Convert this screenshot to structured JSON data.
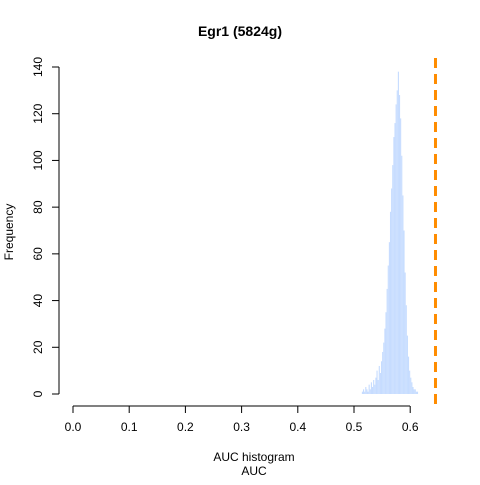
{
  "chart_data": {
    "type": "bar",
    "title": "Egr1 (5824g)",
    "xlabel_line1": "AUC histogram",
    "xlabel_line2": "AUC",
    "ylabel": "Frequency",
    "xlim": [
      0.0,
      0.65
    ],
    "ylim": [
      0,
      140
    ],
    "x_ticks": [
      0.0,
      0.1,
      0.2,
      0.3,
      0.4,
      0.5,
      0.6
    ],
    "x_tick_labels": [
      "0.0",
      "0.1",
      "0.2",
      "0.3",
      "0.4",
      "0.5",
      "0.6"
    ],
    "y_ticks": [
      0,
      20,
      40,
      60,
      80,
      100,
      120,
      140
    ],
    "y_tick_labels": [
      "0",
      "20",
      "40",
      "60",
      "80",
      "100",
      "120",
      "140"
    ],
    "bar_color": "#c6dcff",
    "threshold_color": "#ff8c00",
    "threshold_x": 0.645,
    "bin_width": 0.002,
    "bins": [
      [
        0.514,
        1
      ],
      [
        0.516,
        2
      ],
      [
        0.518,
        1
      ],
      [
        0.52,
        3
      ],
      [
        0.522,
        2
      ],
      [
        0.524,
        1
      ],
      [
        0.526,
        4
      ],
      [
        0.528,
        2
      ],
      [
        0.53,
        5
      ],
      [
        0.532,
        3
      ],
      [
        0.534,
        6
      ],
      [
        0.536,
        4
      ],
      [
        0.538,
        7
      ],
      [
        0.54,
        10
      ],
      [
        0.542,
        6
      ],
      [
        0.544,
        12
      ],
      [
        0.546,
        9
      ],
      [
        0.548,
        14
      ],
      [
        0.55,
        18
      ],
      [
        0.552,
        22
      ],
      [
        0.554,
        28
      ],
      [
        0.556,
        35
      ],
      [
        0.558,
        45
      ],
      [
        0.56,
        55
      ],
      [
        0.562,
        65
      ],
      [
        0.564,
        78
      ],
      [
        0.566,
        88
      ],
      [
        0.568,
        98
      ],
      [
        0.57,
        110
      ],
      [
        0.572,
        116
      ],
      [
        0.574,
        124
      ],
      [
        0.576,
        130
      ],
      [
        0.578,
        138
      ],
      [
        0.58,
        128
      ],
      [
        0.582,
        118
      ],
      [
        0.584,
        102
      ],
      [
        0.586,
        85
      ],
      [
        0.588,
        70
      ],
      [
        0.59,
        52
      ],
      [
        0.592,
        38
      ],
      [
        0.594,
        25
      ],
      [
        0.596,
        16
      ],
      [
        0.598,
        10
      ],
      [
        0.6,
        7
      ],
      [
        0.602,
        5
      ],
      [
        0.604,
        3
      ],
      [
        0.606,
        2
      ],
      [
        0.608,
        2
      ],
      [
        0.61,
        1
      ],
      [
        0.612,
        1
      ]
    ]
  }
}
